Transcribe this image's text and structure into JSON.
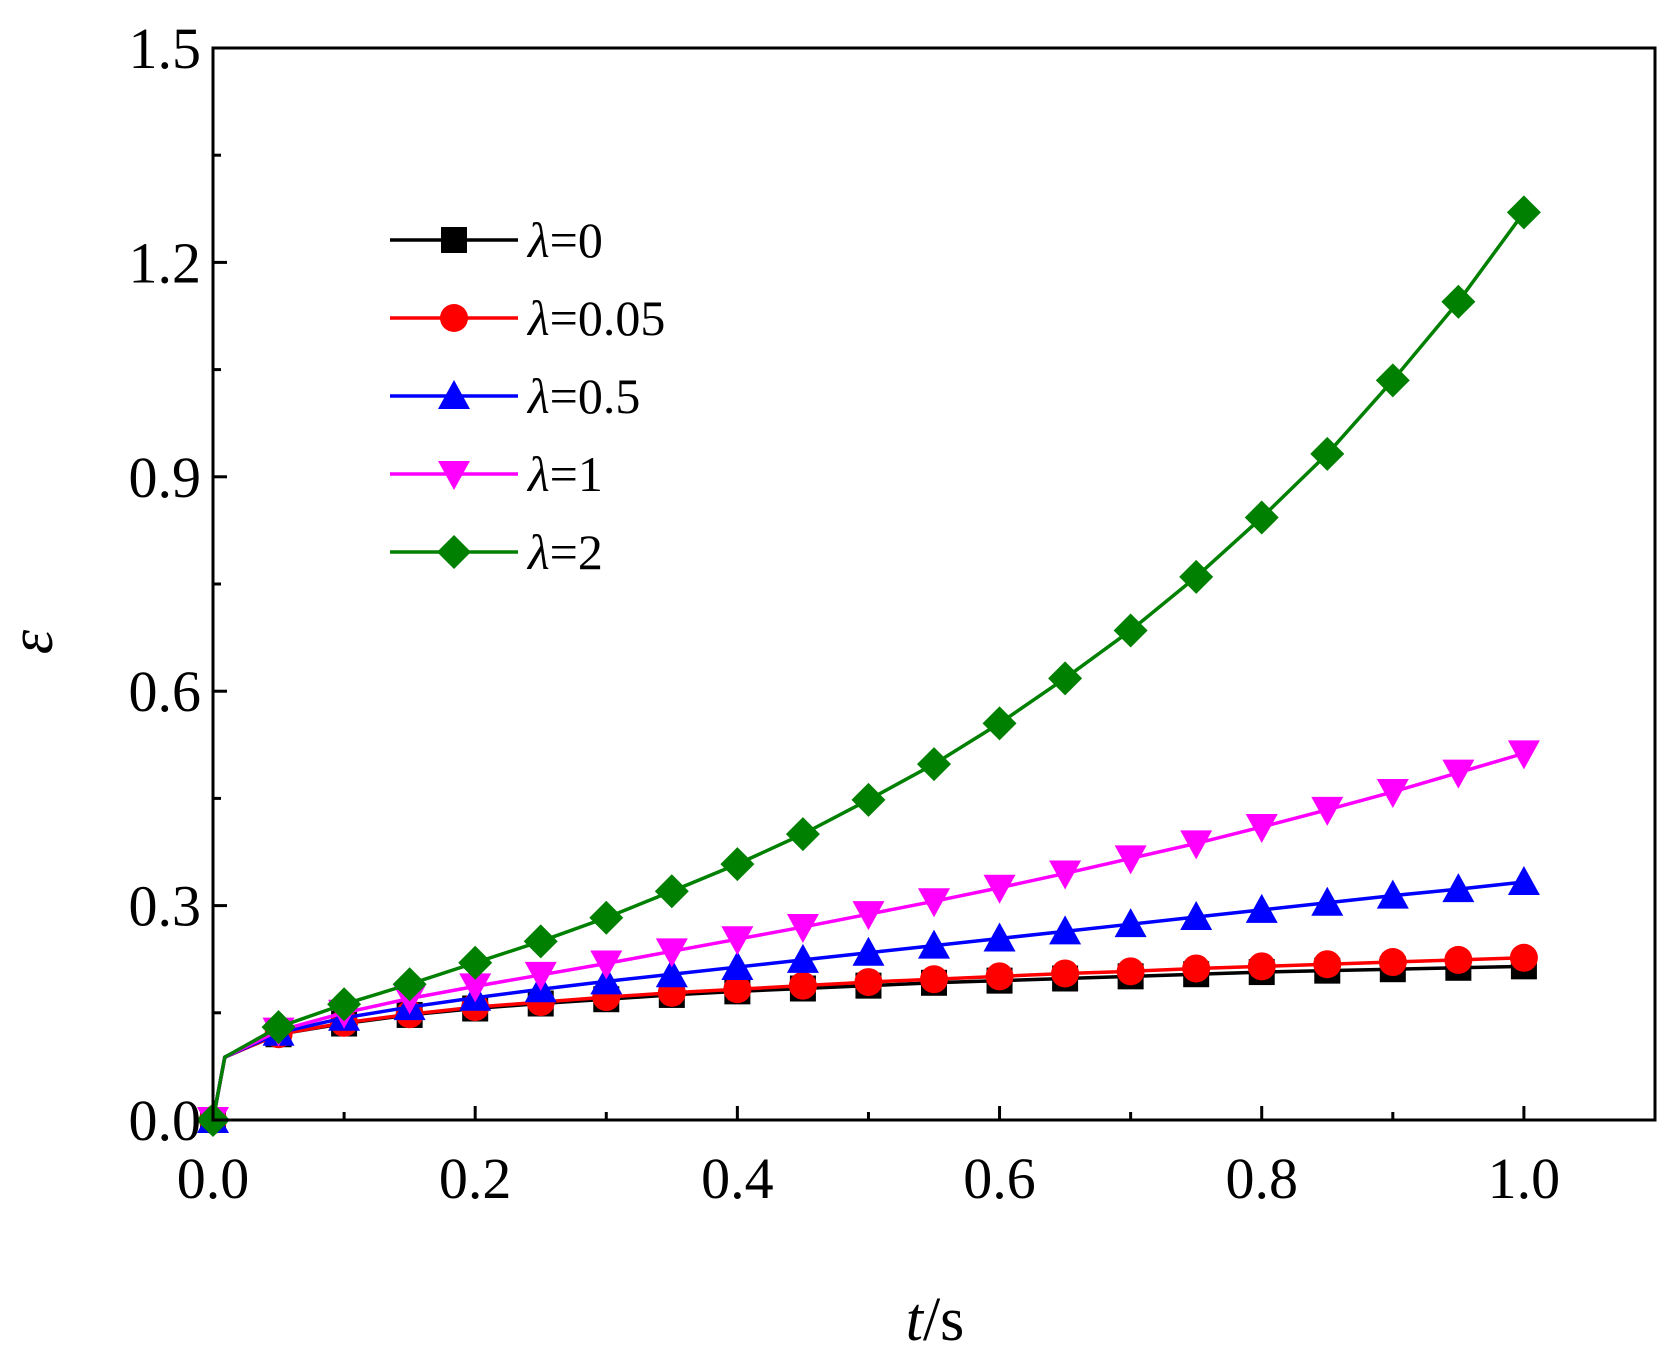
{
  "chart_data": {
    "type": "line",
    "title": "",
    "xlabel": {
      "italic": "t",
      "rest": "/s"
    },
    "ylabel": "ε",
    "xlim": [
      0.0,
      1.1
    ],
    "ylim": [
      0.0,
      1.5
    ],
    "xticks": [
      "0.0",
      "0.2",
      "0.4",
      "0.6",
      "0.8",
      "1.0"
    ],
    "yticks": [
      "0.0",
      "0.3",
      "0.6",
      "0.9",
      "1.2",
      "1.5"
    ],
    "grid": false,
    "legend_position": "top-left",
    "x": [
      0,
      0.05,
      0.1,
      0.15,
      0.2,
      0.25,
      0.3,
      0.35,
      0.4,
      0.45,
      0.5,
      0.55,
      0.6,
      0.65,
      0.7,
      0.75,
      0.8,
      0.85,
      0.9,
      0.95,
      1.0
    ],
    "series": [
      {
        "name": "λ=0",
        "prefix": "λ",
        "rest": "=0",
        "color": "#000000",
        "marker": "square",
        "values": [
          0,
          0.12,
          0.135,
          0.147,
          0.156,
          0.163,
          0.169,
          0.175,
          0.18,
          0.184,
          0.188,
          0.192,
          0.195,
          0.198,
          0.201,
          0.204,
          0.207,
          0.209,
          0.211,
          0.213,
          0.215
        ]
      },
      {
        "name": "λ=0.05",
        "prefix": "λ",
        "rest": "=0.05",
        "color": "#ff0000",
        "marker": "circle",
        "values": [
          0,
          0.12,
          0.136,
          0.148,
          0.158,
          0.165,
          0.172,
          0.178,
          0.183,
          0.188,
          0.193,
          0.197,
          0.201,
          0.205,
          0.208,
          0.212,
          0.215,
          0.218,
          0.221,
          0.224,
          0.227
        ]
      },
      {
        "name": "λ=0.5",
        "prefix": "λ",
        "rest": "=0.5",
        "color": "#0000ff",
        "marker": "triangle-up",
        "values": [
          0,
          0.122,
          0.143,
          0.158,
          0.171,
          0.183,
          0.194,
          0.204,
          0.214,
          0.224,
          0.234,
          0.244,
          0.254,
          0.264,
          0.274,
          0.284,
          0.294,
          0.304,
          0.314,
          0.323,
          0.333
        ]
      },
      {
        "name": "λ=1",
        "prefix": "λ",
        "rest": "=1",
        "color": "#ff00ff",
        "marker": "triangle-down",
        "values": [
          0,
          0.125,
          0.15,
          0.17,
          0.187,
          0.203,
          0.219,
          0.236,
          0.253,
          0.27,
          0.288,
          0.306,
          0.325,
          0.345,
          0.366,
          0.387,
          0.41,
          0.434,
          0.459,
          0.486,
          0.513
        ]
      },
      {
        "name": "λ=2",
        "prefix": "λ",
        "rest": "=2",
        "color": "#008000",
        "marker": "diamond",
        "values": [
          0,
          0.13,
          0.162,
          0.19,
          0.22,
          0.25,
          0.283,
          0.32,
          0.358,
          0.4,
          0.448,
          0.498,
          0.555,
          0.618,
          0.685,
          0.76,
          0.843,
          0.932,
          1.035,
          1.145,
          1.27
        ]
      }
    ]
  }
}
